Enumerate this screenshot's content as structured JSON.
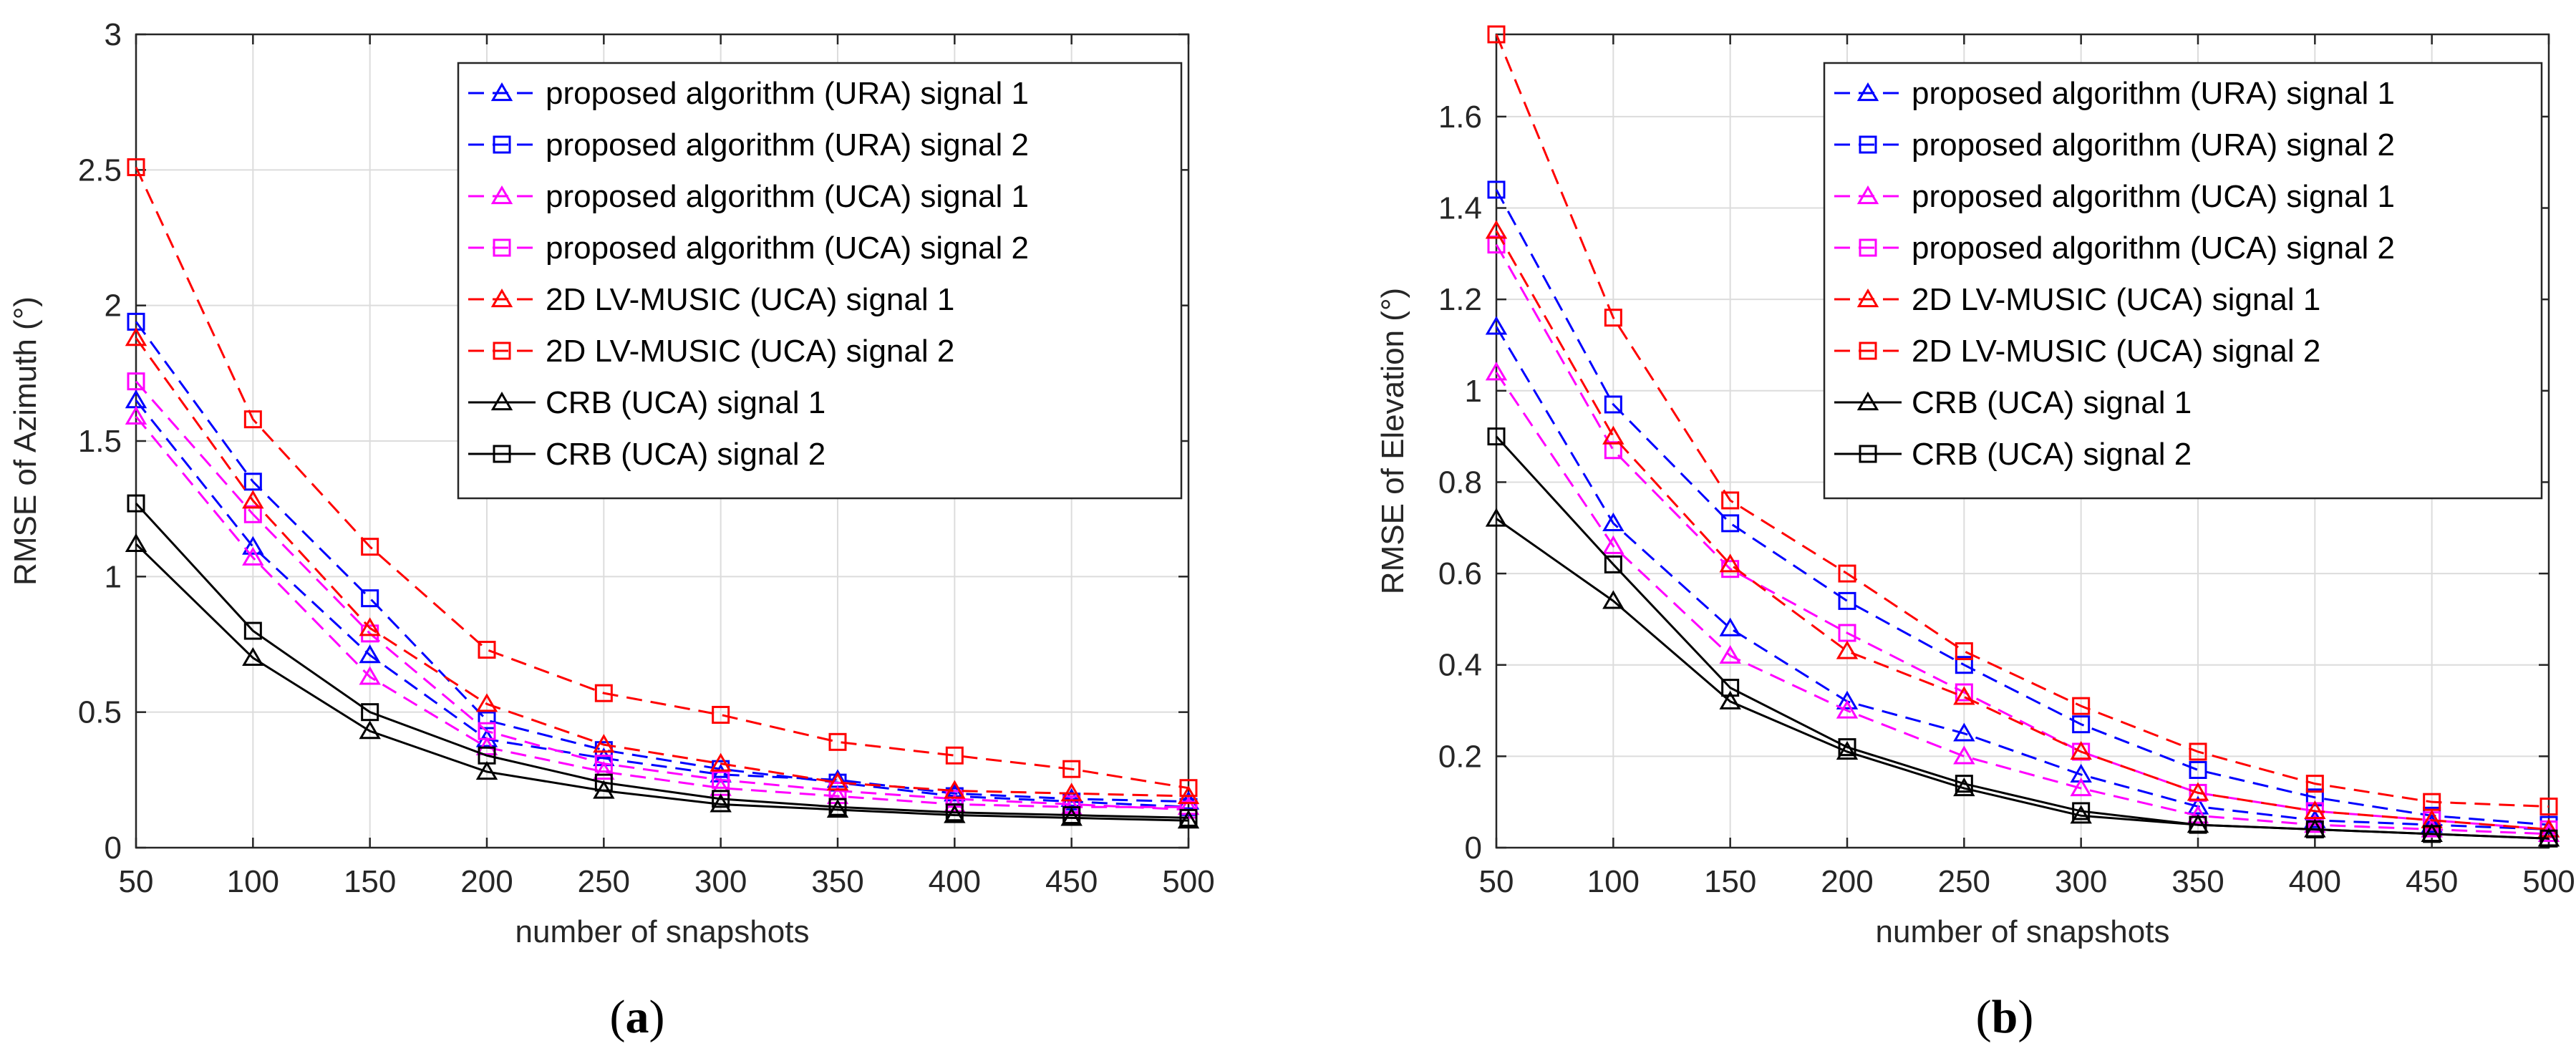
{
  "chart_data": [
    {
      "type": "line",
      "caption_letter": "a",
      "xlabel": "number of snapshots",
      "ylabel": "RMSE of Azimuth (°)",
      "xlim": [
        50,
        500
      ],
      "ylim": [
        0,
        3
      ],
      "xticks": [
        50,
        100,
        150,
        200,
        250,
        300,
        350,
        400,
        450,
        500
      ],
      "yticks": [
        0,
        0.5,
        1,
        1.5,
        2,
        2.5,
        3
      ],
      "ytick_labels": [
        "0",
        "0.5",
        "1",
        "1.5",
        "2",
        "2.5",
        "3"
      ],
      "grid": true,
      "legend_position": "top-right",
      "x": [
        50,
        100,
        150,
        200,
        250,
        300,
        350,
        400,
        450,
        500
      ],
      "series": [
        {
          "name": "proposed algorithm (URA) signal 1",
          "color": "#0000ff",
          "marker": "triangle",
          "dash": true,
          "values": [
            1.65,
            1.11,
            0.71,
            0.4,
            0.33,
            0.27,
            0.25,
            0.2,
            0.18,
            0.17
          ]
        },
        {
          "name": "proposed algorithm (URA) signal 2",
          "color": "#0000ff",
          "marker": "square",
          "dash": true,
          "values": [
            1.94,
            1.35,
            0.92,
            0.47,
            0.36,
            0.29,
            0.24,
            0.19,
            0.17,
            0.15
          ]
        },
        {
          "name": "proposed algorithm (UCA) signal 1",
          "color": "#ff00ff",
          "marker": "triangle",
          "dash": true,
          "values": [
            1.59,
            1.07,
            0.63,
            0.37,
            0.28,
            0.22,
            0.19,
            0.16,
            0.15,
            0.15
          ]
        },
        {
          "name": "proposed algorithm (UCA) signal 2",
          "color": "#ff00ff",
          "marker": "square",
          "dash": true,
          "values": [
            1.72,
            1.23,
            0.79,
            0.43,
            0.31,
            0.25,
            0.21,
            0.18,
            0.16,
            0.14
          ]
        },
        {
          "name": "2D LV-MUSIC (UCA) signal 1",
          "color": "#ff0000",
          "marker": "triangle",
          "dash": true,
          "values": [
            1.88,
            1.28,
            0.81,
            0.53,
            0.38,
            0.31,
            0.24,
            0.21,
            0.2,
            0.19
          ]
        },
        {
          "name": "2D LV-MUSIC (UCA) signal 2",
          "color": "#ff0000",
          "marker": "square",
          "dash": true,
          "values": [
            2.51,
            1.58,
            1.11,
            0.73,
            0.57,
            0.49,
            0.39,
            0.34,
            0.29,
            0.22
          ]
        },
        {
          "name": "CRB (UCA) signal 1",
          "color": "#000000",
          "marker": "triangle",
          "dash": false,
          "values": [
            1.12,
            0.7,
            0.43,
            0.28,
            0.21,
            0.16,
            0.14,
            0.12,
            0.11,
            0.1
          ]
        },
        {
          "name": "CRB (UCA) signal 2",
          "color": "#000000",
          "marker": "square",
          "dash": false,
          "values": [
            1.27,
            0.8,
            0.5,
            0.34,
            0.24,
            0.18,
            0.15,
            0.13,
            0.12,
            0.11
          ]
        }
      ]
    },
    {
      "type": "line",
      "caption_letter": "b",
      "xlabel": "number of snapshots",
      "ylabel": "RMSE of Elevation (°)",
      "xlim": [
        50,
        500
      ],
      "ylim": [
        0,
        1.78
      ],
      "xticks": [
        50,
        100,
        150,
        200,
        250,
        300,
        350,
        400,
        450,
        500
      ],
      "yticks": [
        0,
        0.2,
        0.4,
        0.6,
        0.8,
        1,
        1.2,
        1.4,
        1.6
      ],
      "ytick_labels": [
        "0",
        "0.2",
        "0.4",
        "0.6",
        "0.8",
        "1",
        "1.2",
        "1.4",
        "1.6"
      ],
      "grid": true,
      "legend_position": "top-right",
      "x": [
        50,
        100,
        150,
        200,
        250,
        300,
        350,
        400,
        450,
        500
      ],
      "series": [
        {
          "name": "proposed algorithm (URA) signal 1",
          "color": "#0000ff",
          "marker": "triangle",
          "dash": true,
          "values": [
            1.14,
            0.71,
            0.48,
            0.32,
            0.25,
            0.16,
            0.09,
            0.06,
            0.05,
            0.04
          ]
        },
        {
          "name": "proposed algorithm (URA) signal 2",
          "color": "#0000ff",
          "marker": "square",
          "dash": true,
          "values": [
            1.44,
            0.97,
            0.71,
            0.54,
            0.4,
            0.27,
            0.17,
            0.11,
            0.07,
            0.05
          ]
        },
        {
          "name": "proposed algorithm (UCA) signal 1",
          "color": "#ff00ff",
          "marker": "triangle",
          "dash": true,
          "values": [
            1.04,
            0.66,
            0.42,
            0.3,
            0.2,
            0.13,
            0.07,
            0.05,
            0.04,
            0.03
          ]
        },
        {
          "name": "proposed algorithm (UCA) signal 2",
          "color": "#ff00ff",
          "marker": "square",
          "dash": true,
          "values": [
            1.32,
            0.87,
            0.61,
            0.47,
            0.34,
            0.21,
            0.12,
            0.08,
            0.06,
            0.04
          ]
        },
        {
          "name": "2D LV-MUSIC (UCA) signal 1",
          "color": "#ff0000",
          "marker": "triangle",
          "dash": true,
          "values": [
            1.35,
            0.9,
            0.62,
            0.43,
            0.33,
            0.21,
            0.12,
            0.08,
            0.06,
            0.04
          ]
        },
        {
          "name": "2D LV-MUSIC (UCA) signal 2",
          "color": "#ff0000",
          "marker": "square",
          "dash": true,
          "values": [
            1.78,
            1.16,
            0.76,
            0.6,
            0.43,
            0.31,
            0.21,
            0.14,
            0.1,
            0.09
          ]
        },
        {
          "name": "CRB (UCA) signal 1",
          "color": "#000000",
          "marker": "triangle",
          "dash": false,
          "values": [
            0.72,
            0.54,
            0.32,
            0.21,
            0.13,
            0.07,
            0.05,
            0.04,
            0.03,
            0.02
          ]
        },
        {
          "name": "CRB (UCA) signal 2",
          "color": "#000000",
          "marker": "square",
          "dash": false,
          "values": [
            0.9,
            0.62,
            0.35,
            0.22,
            0.14,
            0.08,
            0.05,
            0.04,
            0.03,
            0.02
          ]
        }
      ]
    }
  ]
}
